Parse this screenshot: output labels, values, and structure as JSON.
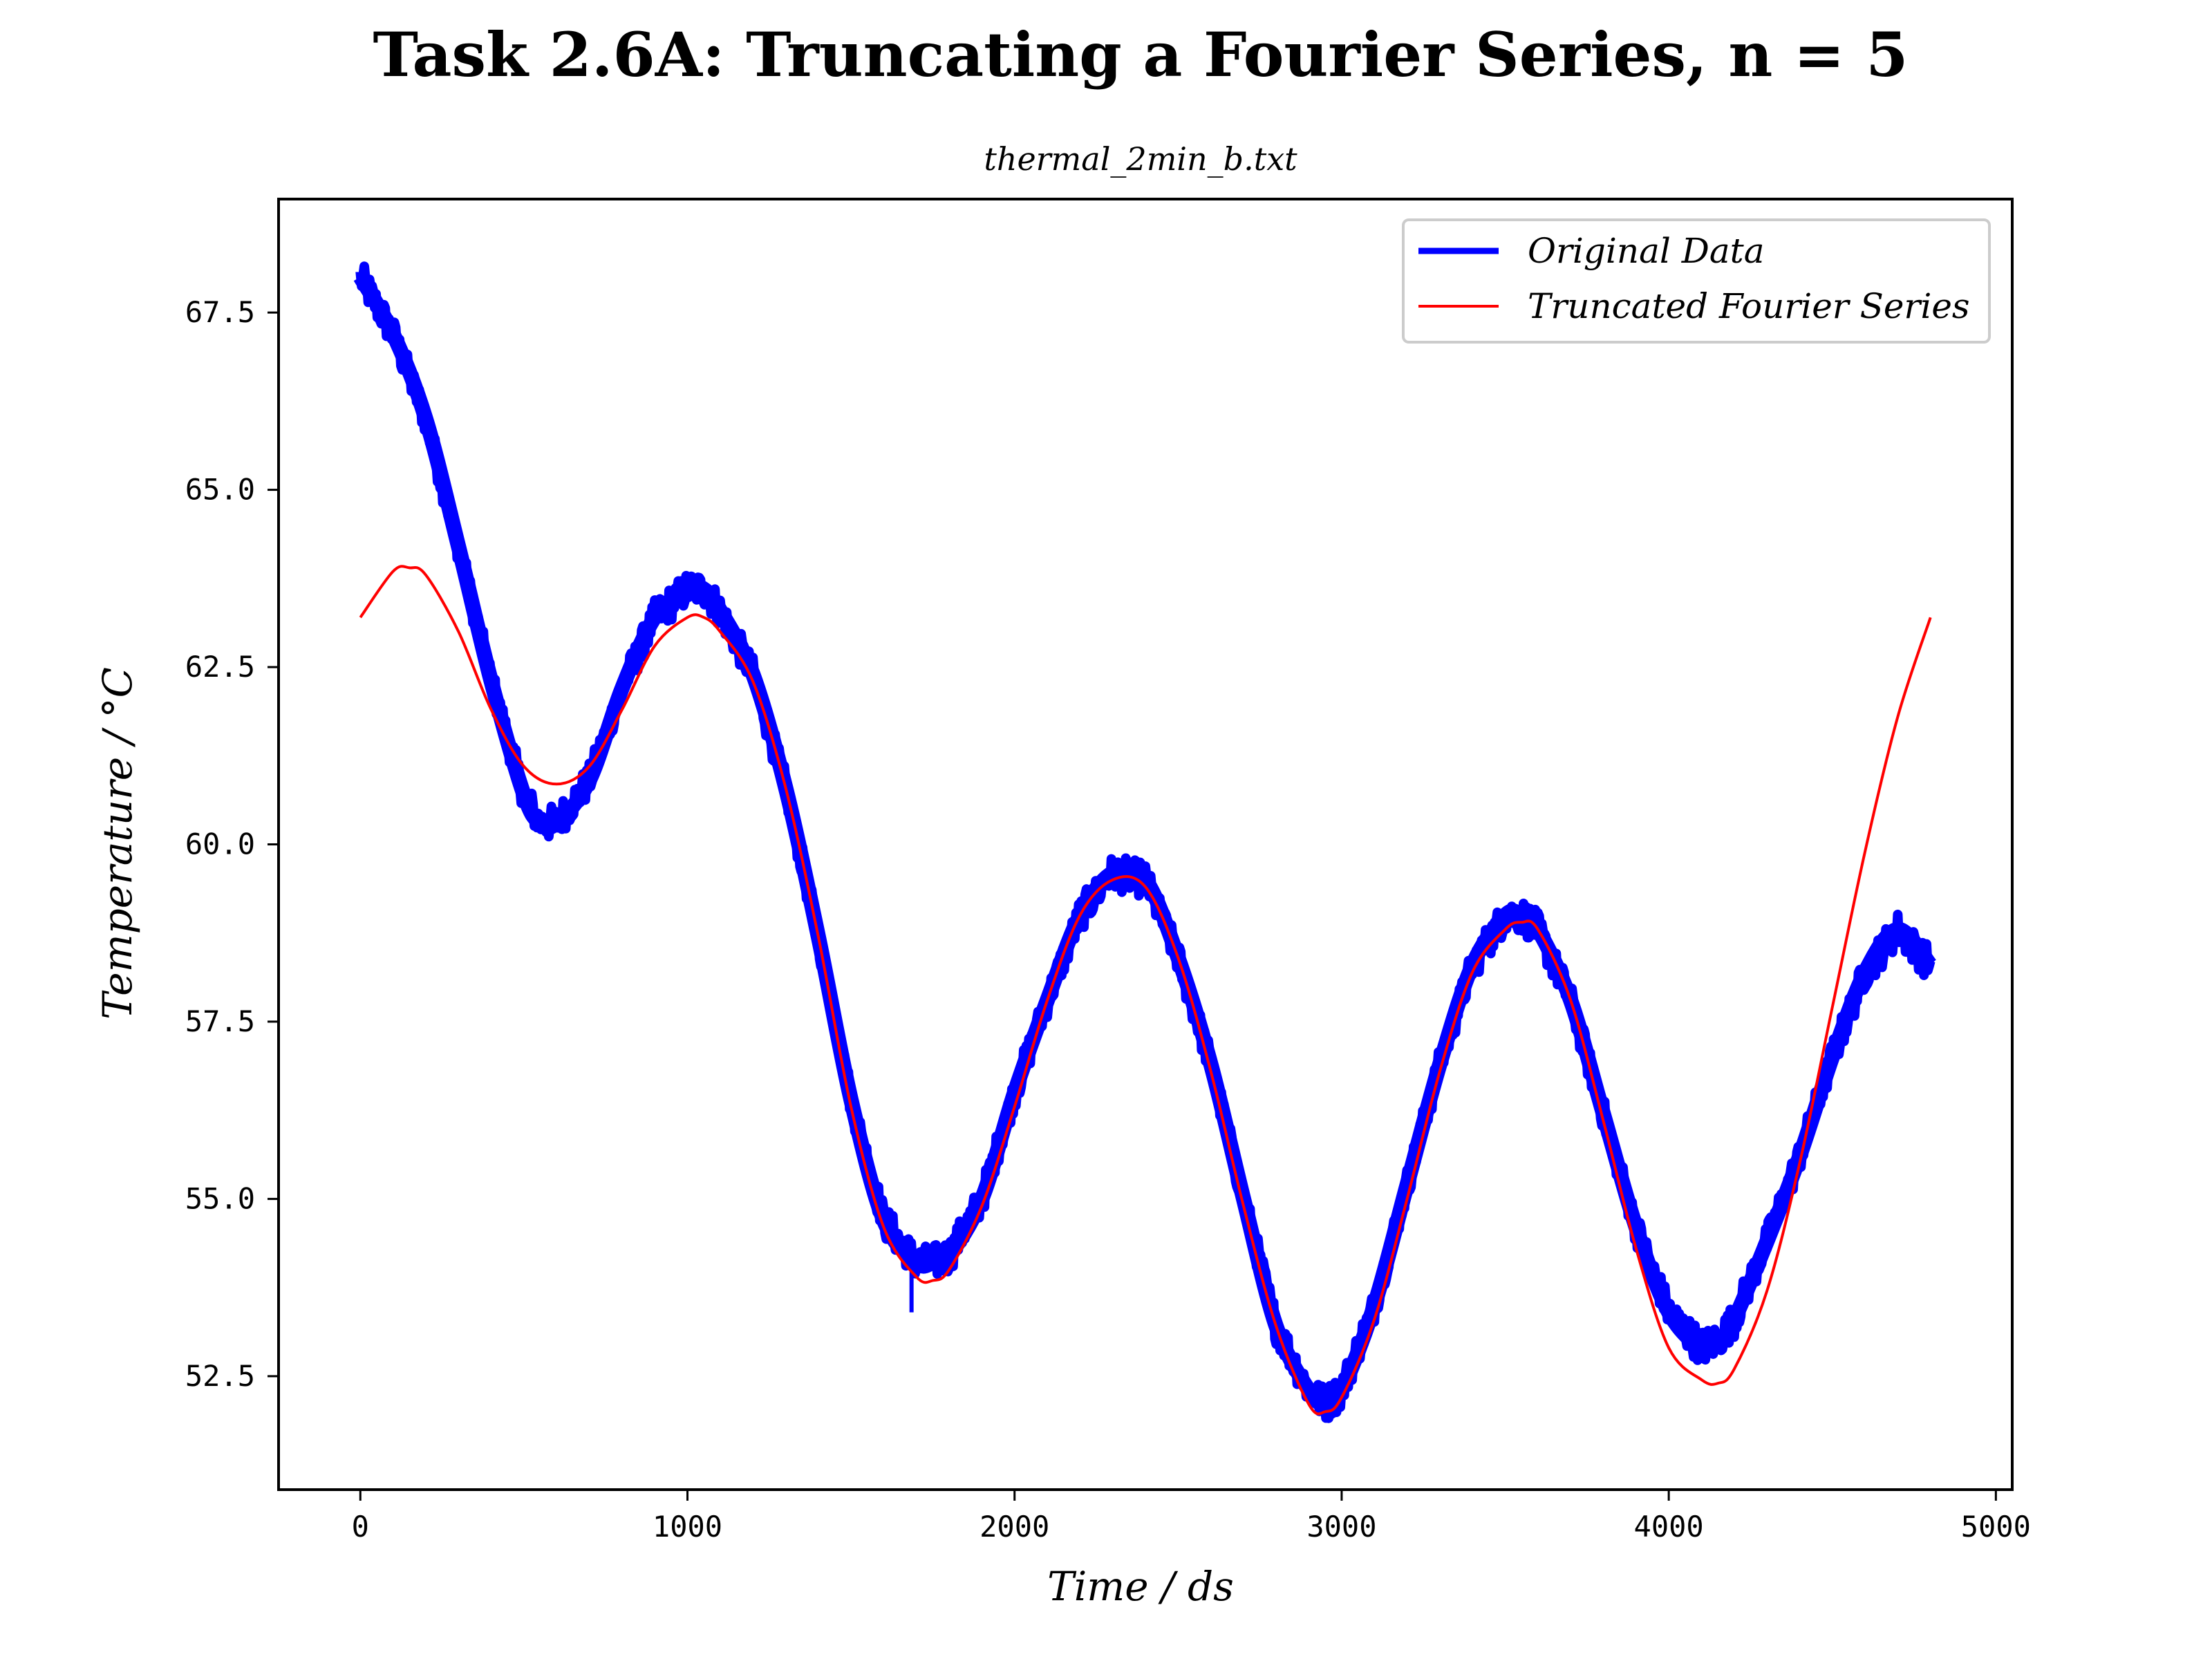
{
  "chart_data": {
    "type": "line",
    "title": "Task 2.6A: Truncating a Fourier Series, n = 5",
    "subtitle": "thermal_2min_b.txt",
    "xlabel": "Time / ds",
    "ylabel": "Temperature / °C",
    "xlim": [
      -250,
      5050
    ],
    "ylim": [
      50.9,
      69.1
    ],
    "xticks": [
      0,
      1000,
      2000,
      3000,
      4000,
      5000
    ],
    "xtick_labels": [
      "0",
      "1000",
      "2000",
      "3000",
      "4000",
      "5000"
    ],
    "yticks": [
      52.5,
      55.0,
      57.5,
      60.0,
      62.5,
      65.0,
      67.5
    ],
    "ytick_labels": [
      "52.5",
      "55.0",
      "57.5",
      "60.0",
      "62.5",
      "65.0",
      "67.5"
    ],
    "grid": false,
    "legend": {
      "position": "top-right",
      "entries": [
        "Original Data",
        "Truncated Fourier Series"
      ]
    },
    "series": [
      {
        "name": "Original Data",
        "color": "#0000ff",
        "style": "thick-noisy",
        "x": [
          0,
          100,
          200,
          300,
          400,
          500,
          550,
          600,
          700,
          800,
          900,
          1000,
          1050,
          1100,
          1200,
          1300,
          1400,
          1500,
          1600,
          1700,
          1750,
          1800,
          1900,
          2000,
          2100,
          2200,
          2300,
          2400,
          2500,
          2600,
          2700,
          2800,
          2900,
          2950,
          3000,
          3100,
          3200,
          3300,
          3400,
          3500,
          3550,
          3600,
          3700,
          3800,
          3900,
          4000,
          4100,
          4150,
          4200,
          4300,
          4400,
          4500,
          4600,
          4700,
          4800
        ],
        "y": [
          68.0,
          67.2,
          66.0,
          64.2,
          62.3,
          60.7,
          60.3,
          60.3,
          60.9,
          62.2,
          63.2,
          63.6,
          63.6,
          63.3,
          62.4,
          60.8,
          58.7,
          56.4,
          54.7,
          54.1,
          54.1,
          54.2,
          55.0,
          56.5,
          57.8,
          59.0,
          59.6,
          59.5,
          58.4,
          56.9,
          55.0,
          53.2,
          52.3,
          52.1,
          52.3,
          53.5,
          55.2,
          56.9,
          58.3,
          59.0,
          59.0,
          58.8,
          57.8,
          56.2,
          54.6,
          53.4,
          52.9,
          53.0,
          53.3,
          54.4,
          55.6,
          57.0,
          58.2,
          58.8,
          58.3
        ],
        "noise_amplitude": 0.25,
        "outlier": {
          "x": 1685,
          "y": 53.4
        }
      },
      {
        "name": "Truncated Fourier Series",
        "color": "#ff0000",
        "style": "thin",
        "x": [
          0,
          100,
          150,
          200,
          300,
          400,
          500,
          600,
          700,
          800,
          900,
          1000,
          1050,
          1100,
          1200,
          1300,
          1400,
          1500,
          1600,
          1700,
          1750,
          1800,
          1900,
          2000,
          2100,
          2200,
          2300,
          2400,
          2500,
          2600,
          2700,
          2800,
          2900,
          2950,
          3000,
          3100,
          3200,
          3300,
          3400,
          3500,
          3550,
          3600,
          3700,
          3800,
          3900,
          4000,
          4100,
          4150,
          4200,
          4300,
          4400,
          4500,
          4600,
          4700,
          4800
        ],
        "y": [
          63.2,
          63.85,
          63.9,
          63.8,
          63.0,
          61.9,
          61.1,
          60.85,
          61.1,
          61.9,
          62.8,
          63.2,
          63.2,
          63.0,
          62.3,
          60.8,
          58.7,
          56.3,
          54.6,
          53.9,
          53.85,
          54.0,
          54.9,
          56.3,
          57.8,
          59.0,
          59.5,
          59.4,
          58.4,
          56.8,
          54.9,
          53.2,
          52.1,
          52.0,
          52.2,
          53.3,
          55.0,
          56.8,
          58.2,
          58.8,
          58.9,
          58.8,
          57.8,
          56.1,
          54.3,
          52.9,
          52.45,
          52.4,
          52.6,
          53.7,
          55.5,
          57.7,
          59.9,
          61.8,
          63.2
        ]
      }
    ]
  }
}
